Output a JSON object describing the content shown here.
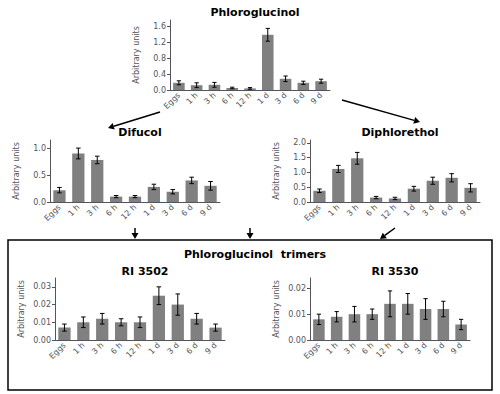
{
  "title": "Phloroglucinol  trimers",
  "chart_data": [
    {
      "type": "bar",
      "title": "Phloroglucinol",
      "categories": [
        "Eggs",
        "1 h",
        "3 h",
        "6 h",
        "12 h",
        "1 d",
        "3 d",
        "6 d",
        "9 d"
      ],
      "values": [
        0.18,
        0.12,
        0.13,
        0.05,
        0.04,
        1.38,
        0.28,
        0.18,
        0.22
      ],
      "errors": [
        0.05,
        0.06,
        0.06,
        0.02,
        0.02,
        0.16,
        0.07,
        0.04,
        0.05
      ],
      "ylabel": "Arbitrary units",
      "color": "#808080",
      "ylim": [
        0,
        1.75
      ],
      "yticks": [
        {
          "value": 0,
          "label": "0.0"
        },
        0.4,
        0.8,
        1.2,
        1.6
      ],
      "grid": false
    },
    {
      "type": "bar",
      "title": "Difucol",
      "categories": [
        "Eggs",
        "1 h",
        "3 h",
        "6 h",
        "12 h",
        "1 d",
        "3 d",
        "6 d",
        "9 d"
      ],
      "values": [
        0.22,
        0.9,
        0.78,
        0.1,
        0.1,
        0.28,
        0.19,
        0.4,
        0.3
      ],
      "errors": [
        0.05,
        0.1,
        0.07,
        0.02,
        0.02,
        0.05,
        0.04,
        0.06,
        0.08
      ],
      "ylabel": "Arbitrary units",
      "color": "#808080",
      "ylim": [
        0,
        1.15
      ],
      "yticks": [
        {
          "value": 0,
          "label": "0.0"
        },
        0.5,
        {
          "value": 1.0,
          "label": "1.0"
        }
      ],
      "grid": false
    },
    {
      "type": "bar",
      "title": "Diphlorethol",
      "categories": [
        "Eggs",
        "1 h",
        "3 h",
        "6 h",
        "12 h",
        "1 d",
        "3 d",
        "6 d",
        "9 d"
      ],
      "values": [
        0.38,
        1.12,
        1.48,
        0.15,
        0.12,
        0.45,
        0.72,
        0.82,
        0.48
      ],
      "errors": [
        0.06,
        0.12,
        0.2,
        0.04,
        0.04,
        0.08,
        0.12,
        0.14,
        0.14
      ],
      "ylabel": "Arbitrary units",
      "color": "#808080",
      "ylim": [
        0,
        2.1
      ],
      "yticks": [
        {
          "value": 0,
          "label": "0.0"
        },
        0.5,
        {
          "value": 1.0,
          "label": "1.0"
        },
        1.5,
        {
          "value": 2.0,
          "label": "2.0"
        }
      ],
      "grid": false
    },
    {
      "type": "bar",
      "title": "RI 3502",
      "categories": [
        "Eggs",
        "1 h",
        "3 h",
        "6 h",
        "12 h",
        "1 d",
        "3 d",
        "6 d",
        "9 d"
      ],
      "values": [
        0.007,
        0.01,
        0.012,
        0.01,
        0.01,
        0.025,
        0.02,
        0.012,
        0.007
      ],
      "errors": [
        0.002,
        0.003,
        0.003,
        0.002,
        0.003,
        0.005,
        0.006,
        0.003,
        0.002
      ],
      "ylabel": "Arbitrary units",
      "color": "#808080",
      "ylim": [
        0,
        0.035
      ],
      "yticks": [
        {
          "value": 0,
          "label": "0.00"
        },
        0.01,
        0.02,
        0.03
      ],
      "grid": false
    },
    {
      "type": "bar",
      "title": "RI 3530",
      "categories": [
        "Eggs",
        "1 h",
        "3 h",
        "6 h",
        "12 h",
        "1 d",
        "3 d",
        "6 d",
        "9 d"
      ],
      "values": [
        0.008,
        0.009,
        0.01,
        0.01,
        0.014,
        0.014,
        0.012,
        0.012,
        0.006
      ],
      "errors": [
        0.002,
        0.002,
        0.003,
        0.002,
        0.005,
        0.004,
        0.004,
        0.003,
        0.002
      ],
      "ylabel": "Arbitrary units",
      "color": "#808080",
      "ylim": [
        0,
        0.024
      ],
      "yticks": [
        {
          "value": 0,
          "label": "0.00"
        },
        0.01,
        0.02
      ],
      "grid": false
    }
  ]
}
